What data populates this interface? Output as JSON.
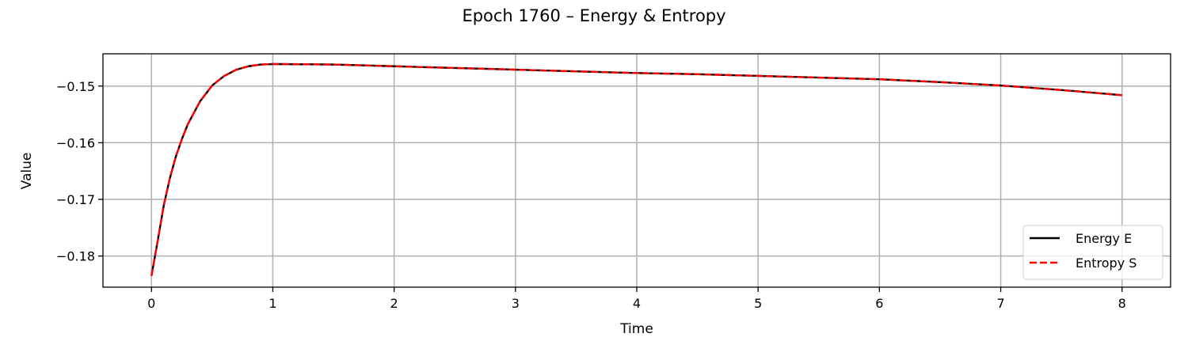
{
  "chart_data": {
    "type": "line",
    "title": "Epoch 1760 – Energy & Entropy",
    "xlabel": "Time",
    "ylabel": "Value",
    "xlim": [
      -0.4,
      8.4
    ],
    "ylim": [
      -0.1855,
      -0.1443
    ],
    "xticks": [
      0,
      1,
      2,
      3,
      4,
      5,
      6,
      7,
      8
    ],
    "xtick_labels": [
      "0",
      "1",
      "2",
      "3",
      "4",
      "5",
      "6",
      "7",
      "8"
    ],
    "yticks": [
      -0.18,
      -0.17,
      -0.16,
      -0.15
    ],
    "ytick_labels": [
      "−0.18",
      "−0.17",
      "−0.16",
      "−0.15"
    ],
    "grid": true,
    "legend_position": "lower-right",
    "x": [
      0,
      0.05,
      0.1,
      0.15,
      0.2,
      0.25,
      0.3,
      0.4,
      0.5,
      0.6,
      0.7,
      0.8,
      0.9,
      1.0,
      1.5,
      2.0,
      2.5,
      3.0,
      3.5,
      4.0,
      4.5,
      5.0,
      5.5,
      6.0,
      6.5,
      7.0,
      7.5,
      8.0
    ],
    "series": [
      {
        "name": "Energy E",
        "color": "#000000",
        "style": "solid",
        "values": [
          -0.1835,
          -0.1775,
          -0.1712,
          -0.1664,
          -0.1625,
          -0.1594,
          -0.1567,
          -0.1527,
          -0.1499,
          -0.1482,
          -0.1471,
          -0.1465,
          -0.1462,
          -0.1461,
          -0.1462,
          -0.1465,
          -0.1468,
          -0.1471,
          -0.1474,
          -0.1477,
          -0.1479,
          -0.1482,
          -0.1485,
          -0.1488,
          -0.1493,
          -0.1499,
          -0.1507,
          -0.1516
        ]
      },
      {
        "name": "Entropy S",
        "color": "#ff0000",
        "style": "dashed",
        "values": [
          -0.1835,
          -0.1775,
          -0.1712,
          -0.1664,
          -0.1625,
          -0.1594,
          -0.1567,
          -0.1527,
          -0.1499,
          -0.1482,
          -0.1471,
          -0.1465,
          -0.1462,
          -0.1461,
          -0.1462,
          -0.1465,
          -0.1468,
          -0.1471,
          -0.1474,
          -0.1477,
          -0.1479,
          -0.1482,
          -0.1485,
          -0.1488,
          -0.1493,
          -0.1499,
          -0.1507,
          -0.1516
        ]
      }
    ]
  }
}
